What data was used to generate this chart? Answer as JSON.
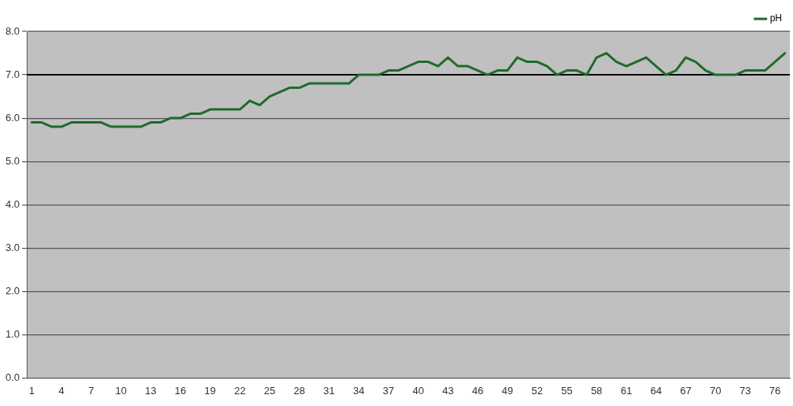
{
  "chart_data": {
    "type": "line",
    "categories": [
      "1",
      null,
      null,
      "4",
      null,
      null,
      "7",
      null,
      null,
      "10",
      null,
      null,
      "13",
      null,
      null,
      "16",
      null,
      null,
      "19",
      null,
      null,
      "22",
      null,
      null,
      "25",
      null,
      null,
      "28",
      null,
      null,
      "31",
      null,
      null,
      "34",
      null,
      null,
      "37",
      null,
      null,
      "40",
      null,
      null,
      "43",
      null,
      null,
      "46",
      null,
      null,
      "49",
      null,
      null,
      "52",
      null,
      null,
      "55",
      null,
      null,
      "58",
      null,
      null,
      "61",
      null,
      null,
      "64",
      null,
      null,
      "67",
      null,
      null,
      "70",
      null,
      null,
      "73",
      null,
      null,
      "76",
      null
    ],
    "series": [
      {
        "name": "pH",
        "color": "#1e6b2a",
        "values": [
          5.9,
          5.9,
          5.8,
          5.8,
          5.9,
          5.9,
          5.9,
          5.9,
          5.8,
          5.8,
          5.8,
          5.8,
          5.9,
          5.9,
          6.0,
          6.0,
          6.1,
          6.1,
          6.2,
          6.2,
          6.2,
          6.2,
          6.4,
          6.3,
          6.5,
          6.6,
          6.7,
          6.7,
          6.8,
          6.8,
          6.8,
          6.8,
          6.8,
          7.0,
          7.0,
          7.0,
          7.1,
          7.1,
          7.2,
          7.3,
          7.3,
          7.2,
          7.4,
          7.2,
          7.2,
          7.1,
          7.0,
          7.1,
          7.1,
          7.4,
          7.3,
          7.3,
          7.2,
          7.0,
          7.1,
          7.1,
          7.0,
          7.4,
          7.5,
          7.3,
          7.2,
          7.3,
          7.4,
          7.2,
          7.0,
          7.1,
          7.4,
          7.3,
          7.1,
          7.0,
          7.0,
          7.0,
          7.1,
          7.1,
          7.1,
          7.3,
          7.5
        ]
      }
    ],
    "ylim": [
      0,
      8
    ],
    "yticks": [
      {
        "value": 0,
        "label": "0.0"
      },
      {
        "value": 1,
        "label": "1.0"
      },
      {
        "value": 2,
        "label": "2.0"
      },
      {
        "value": 3,
        "label": "3.0"
      },
      {
        "value": 4,
        "label": "4.0"
      },
      {
        "value": 5,
        "label": "5.0"
      },
      {
        "value": 6,
        "label": "6.0"
      },
      {
        "value": 7,
        "label": "7.0"
      },
      {
        "value": 8,
        "label": "8.0"
      }
    ],
    "ref_lines": [
      {
        "axis": "y",
        "value": 7,
        "color": "#000000"
      }
    ],
    "grid": "y",
    "legend": "top right",
    "marker": "none",
    "line_style": "solid"
  }
}
